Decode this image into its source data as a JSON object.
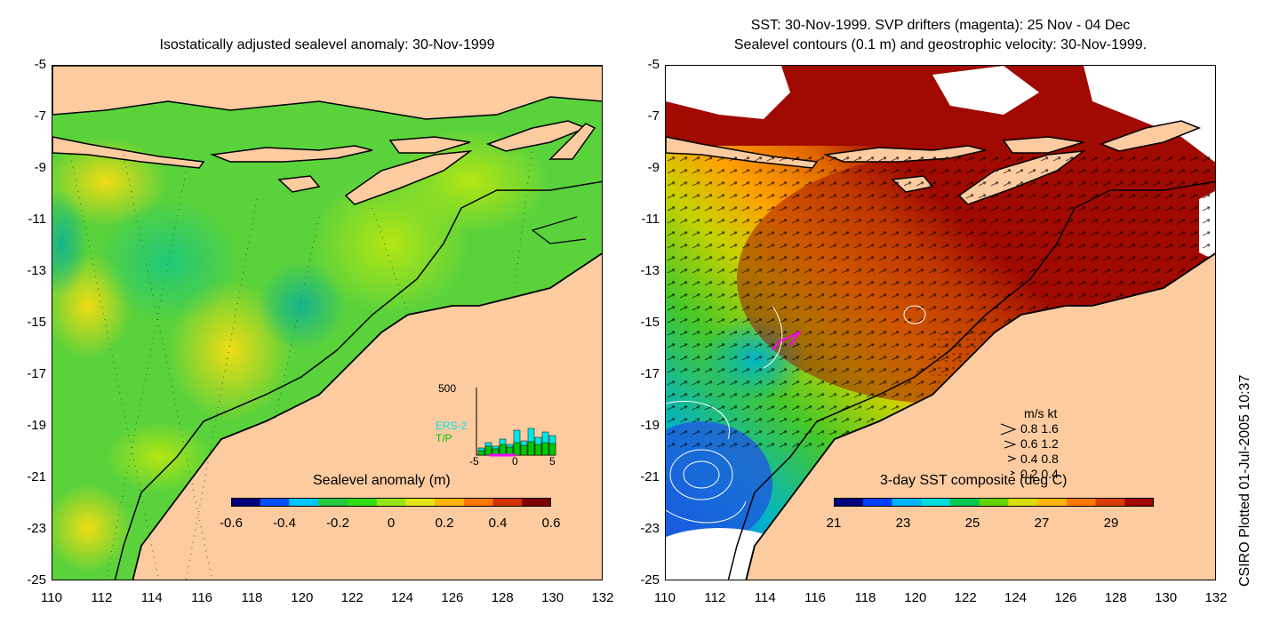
{
  "left_panel": {
    "title": "Isostatically adjusted sealevel anomaly: 30-Nov-1999",
    "colorbar_title": "Sealevel anomaly (m)",
    "colorbar_ticks": [
      "-0.6",
      "-0.4",
      "-0.2",
      "0",
      "0.2",
      "0.4",
      "0.6"
    ],
    "colorbar_colors": [
      "#00007f",
      "#0050ff",
      "#00c8ff",
      "#28c83c",
      "#32dc14",
      "#96e614",
      "#e6e614",
      "#ffb400",
      "#ff7800",
      "#d23200",
      "#800000"
    ],
    "inset": {
      "ymax": "500",
      "series": [
        "ERS-2",
        "T/P"
      ],
      "xticks": [
        "-5",
        "0",
        "5"
      ],
      "series_colors": [
        "#00e6e6",
        "#00c800"
      ]
    }
  },
  "right_panel": {
    "title_line1": "SST: 30-Nov-1999. SVP drifters (magenta): 25 Nov - 04 Dec",
    "title_line2": "Sealevel contours (0.1 m) and geostrophic velocity: 30-Nov-1999.",
    "colorbar_title": "3-day SST composite (deg C)",
    "colorbar_ticks": [
      "21",
      "23",
      "25",
      "27",
      "29"
    ],
    "colorbar_colors": [
      "#00007f",
      "#0040ff",
      "#00b4ff",
      "#00dcdc",
      "#00c850",
      "#64d200",
      "#dcdc00",
      "#ffb400",
      "#ff7800",
      "#d83c00",
      "#a00000"
    ],
    "velocity_legend": {
      "header": "m/s  kt",
      "rows": [
        "0.8  1.6",
        "0.6  1.2",
        "0.4  0.8",
        "0.2  0.4"
      ]
    }
  },
  "axes": {
    "yticks": [
      "-5",
      "-7",
      "-9",
      "-11",
      "-13",
      "-15",
      "-17",
      "-19",
      "-21",
      "-23",
      "-25"
    ],
    "xticks": [
      "110",
      "112",
      "114",
      "116",
      "118",
      "120",
      "122",
      "124",
      "126",
      "128",
      "130",
      "132"
    ],
    "lon_range": [
      110,
      132
    ],
    "lat_range": [
      -25,
      -5
    ]
  },
  "colors": {
    "land": "#fccba0",
    "sea_base_left": "#5ad23c",
    "sst_hot": "#a00a00"
  },
  "credit": "CSIRO Plotted 01-Jul-2005 10:37"
}
